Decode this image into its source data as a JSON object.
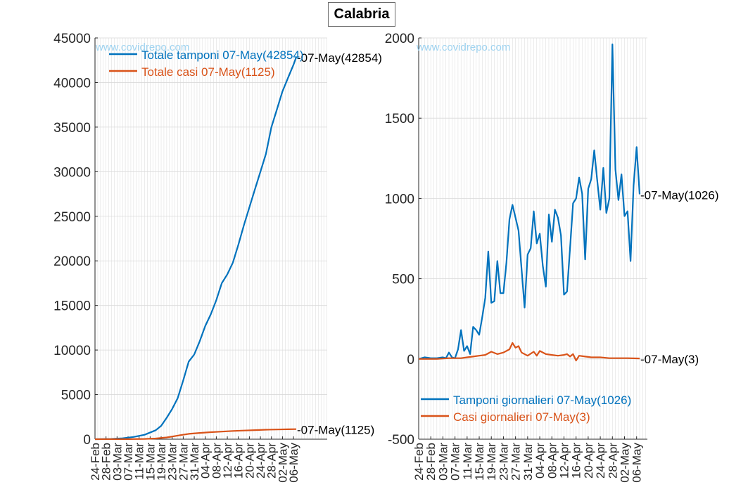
{
  "page": {
    "title": "Calabria",
    "watermark": "www.covidrepo.com"
  },
  "chart_data": [
    {
      "type": "line",
      "title": "",
      "xlabel": "",
      "ylabel": "",
      "ylim": [
        0,
        45000
      ],
      "yticks": [
        0,
        5000,
        10000,
        15000,
        20000,
        25000,
        30000,
        35000,
        40000,
        45000
      ],
      "xticklabels": [
        "24-Feb",
        "28-Feb",
        "03-Mar",
        "07-Mar",
        "11-Mar",
        "15-Mar",
        "19-Mar",
        "23-Mar",
        "27-Mar",
        "31-Mar",
        "04-Apr",
        "08-Apr",
        "12-Apr",
        "16-Apr",
        "20-Apr",
        "24-Apr",
        "28-Apr",
        "02-May",
        "06-May"
      ],
      "x_start": "24-Feb",
      "x_end": "07-May",
      "grid": true,
      "legend_position": "top-left",
      "series": [
        {
          "name": "Totale tamponi 07-May(42854)",
          "color": "#0072BD",
          "end_label": "-07-May(42854)",
          "values": [
            {
              "d": "24-Feb",
              "v": 0
            },
            {
              "d": "01-Mar",
              "v": 30
            },
            {
              "d": "05-Mar",
              "v": 100
            },
            {
              "d": "09-Mar",
              "v": 250
            },
            {
              "d": "13-Mar",
              "v": 500
            },
            {
              "d": "17-Mar",
              "v": 1000
            },
            {
              "d": "19-Mar",
              "v": 1500
            },
            {
              "d": "21-Mar",
              "v": 2400
            },
            {
              "d": "23-Mar",
              "v": 3400
            },
            {
              "d": "25-Mar",
              "v": 4600
            },
            {
              "d": "27-Mar",
              "v": 6600
            },
            {
              "d": "29-Mar",
              "v": 8700
            },
            {
              "d": "31-Mar",
              "v": 9500
            },
            {
              "d": "02-Apr",
              "v": 11000
            },
            {
              "d": "04-Apr",
              "v": 12700
            },
            {
              "d": "06-Apr",
              "v": 14000
            },
            {
              "d": "08-Apr",
              "v": 15600
            },
            {
              "d": "10-Apr",
              "v": 17500
            },
            {
              "d": "12-Apr",
              "v": 18500
            },
            {
              "d": "14-Apr",
              "v": 19800
            },
            {
              "d": "16-Apr",
              "v": 21800
            },
            {
              "d": "18-Apr",
              "v": 24000
            },
            {
              "d": "20-Apr",
              "v": 26000
            },
            {
              "d": "22-Apr",
              "v": 28000
            },
            {
              "d": "24-Apr",
              "v": 30000
            },
            {
              "d": "26-Apr",
              "v": 32000
            },
            {
              "d": "28-Apr",
              "v": 35000
            },
            {
              "d": "30-Apr",
              "v": 37000
            },
            {
              "d": "02-May",
              "v": 39000
            },
            {
              "d": "04-May",
              "v": 40500
            },
            {
              "d": "06-May",
              "v": 42000
            },
            {
              "d": "07-May",
              "v": 42854
            }
          ]
        },
        {
          "name": "Totale casi 07-May(1125)",
          "color": "#D95319",
          "end_label": "-07-May(1125)",
          "values": [
            {
              "d": "24-Feb",
              "v": 0
            },
            {
              "d": "07-Mar",
              "v": 5
            },
            {
              "d": "13-Mar",
              "v": 30
            },
            {
              "d": "17-Mar",
              "v": 80
            },
            {
              "d": "21-Mar",
              "v": 200
            },
            {
              "d": "25-Mar",
              "v": 400
            },
            {
              "d": "29-Mar",
              "v": 600
            },
            {
              "d": "02-Apr",
              "v": 700
            },
            {
              "d": "06-Apr",
              "v": 790
            },
            {
              "d": "10-Apr",
              "v": 850
            },
            {
              "d": "14-Apr",
              "v": 920
            },
            {
              "d": "18-Apr",
              "v": 970
            },
            {
              "d": "22-Apr",
              "v": 1020
            },
            {
              "d": "26-Apr",
              "v": 1060
            },
            {
              "d": "30-Apr",
              "v": 1085
            },
            {
              "d": "04-May",
              "v": 1110
            },
            {
              "d": "07-May",
              "v": 1125
            }
          ]
        }
      ]
    },
    {
      "type": "line",
      "title": "",
      "xlabel": "",
      "ylabel": "",
      "ylim": [
        -500,
        2000
      ],
      "yticks": [
        -500,
        0,
        500,
        1000,
        1500,
        2000
      ],
      "xticklabels": [
        "24-Feb",
        "28-Feb",
        "03-Mar",
        "07-Mar",
        "11-Mar",
        "15-Mar",
        "19-Mar",
        "23-Mar",
        "27-Mar",
        "31-Mar",
        "04-Apr",
        "08-Apr",
        "12-Apr",
        "16-Apr",
        "20-Apr",
        "24-Apr",
        "28-Apr",
        "02-May",
        "06-May"
      ],
      "x_start": "24-Feb",
      "x_end": "07-May",
      "grid": true,
      "legend_position": "bottom-left",
      "series": [
        {
          "name": "Tamponi giornalieri 07-May(1026)",
          "color": "#0072BD",
          "end_label": "-07-May(1026)",
          "values": [
            {
              "d": "24-Feb",
              "v": 0
            },
            {
              "d": "26-Feb",
              "v": 10
            },
            {
              "d": "28-Feb",
              "v": 5
            },
            {
              "d": "01-Mar",
              "v": 5
            },
            {
              "d": "03-Mar",
              "v": 10
            },
            {
              "d": "04-Mar",
              "v": 5
            },
            {
              "d": "05-Mar",
              "v": 40
            },
            {
              "d": "06-Mar",
              "v": 10
            },
            {
              "d": "07-Mar",
              "v": 5
            },
            {
              "d": "08-Mar",
              "v": 60
            },
            {
              "d": "09-Mar",
              "v": 180
            },
            {
              "d": "10-Mar",
              "v": 50
            },
            {
              "d": "11-Mar",
              "v": 80
            },
            {
              "d": "12-Mar",
              "v": 30
            },
            {
              "d": "13-Mar",
              "v": 200
            },
            {
              "d": "14-Mar",
              "v": 180
            },
            {
              "d": "15-Mar",
              "v": 150
            },
            {
              "d": "16-Mar",
              "v": 260
            },
            {
              "d": "17-Mar",
              "v": 380
            },
            {
              "d": "18-Mar",
              "v": 670
            },
            {
              "d": "19-Mar",
              "v": 350
            },
            {
              "d": "20-Mar",
              "v": 360
            },
            {
              "d": "21-Mar",
              "v": 610
            },
            {
              "d": "22-Mar",
              "v": 410
            },
            {
              "d": "23-Mar",
              "v": 410
            },
            {
              "d": "24-Mar",
              "v": 600
            },
            {
              "d": "25-Mar",
              "v": 870
            },
            {
              "d": "26-Mar",
              "v": 960
            },
            {
              "d": "27-Mar",
              "v": 880
            },
            {
              "d": "28-Mar",
              "v": 800
            },
            {
              "d": "29-Mar",
              "v": 560
            },
            {
              "d": "30-Mar",
              "v": 320
            },
            {
              "d": "31-Mar",
              "v": 650
            },
            {
              "d": "01-Apr",
              "v": 690
            },
            {
              "d": "02-Apr",
              "v": 920
            },
            {
              "d": "03-Apr",
              "v": 720
            },
            {
              "d": "04-Apr",
              "v": 780
            },
            {
              "d": "05-Apr",
              "v": 580
            },
            {
              "d": "06-Apr",
              "v": 450
            },
            {
              "d": "07-Apr",
              "v": 900
            },
            {
              "d": "08-Apr",
              "v": 730
            },
            {
              "d": "09-Apr",
              "v": 930
            },
            {
              "d": "10-Apr",
              "v": 880
            },
            {
              "d": "11-Apr",
              "v": 770
            },
            {
              "d": "12-Apr",
              "v": 400
            },
            {
              "d": "13-Apr",
              "v": 420
            },
            {
              "d": "14-Apr",
              "v": 690
            },
            {
              "d": "15-Apr",
              "v": 970
            },
            {
              "d": "16-Apr",
              "v": 1000
            },
            {
              "d": "17-Apr",
              "v": 1130
            },
            {
              "d": "18-Apr",
              "v": 1030
            },
            {
              "d": "19-Apr",
              "v": 620
            },
            {
              "d": "20-Apr",
              "v": 1060
            },
            {
              "d": "21-Apr",
              "v": 1120
            },
            {
              "d": "22-Apr",
              "v": 1300
            },
            {
              "d": "23-Apr",
              "v": 1110
            },
            {
              "d": "24-Apr",
              "v": 930
            },
            {
              "d": "25-Apr",
              "v": 1190
            },
            {
              "d": "26-Apr",
              "v": 910
            },
            {
              "d": "27-Apr",
              "v": 1000
            },
            {
              "d": "28-Apr",
              "v": 1960
            },
            {
              "d": "29-Apr",
              "v": 1180
            },
            {
              "d": "30-Apr",
              "v": 990
            },
            {
              "d": "01-May",
              "v": 1150
            },
            {
              "d": "02-May",
              "v": 890
            },
            {
              "d": "03-May",
              "v": 920
            },
            {
              "d": "04-May",
              "v": 610
            },
            {
              "d": "05-May",
              "v": 1080
            },
            {
              "d": "06-May",
              "v": 1320
            },
            {
              "d": "07-May",
              "v": 1026
            }
          ]
        },
        {
          "name": "Casi giornalieri 07-May(3)",
          "color": "#D95319",
          "end_label": "-07-May(3)",
          "values": [
            {
              "d": "24-Feb",
              "v": 0
            },
            {
              "d": "01-Mar",
              "v": 0
            },
            {
              "d": "05-Mar",
              "v": 5
            },
            {
              "d": "09-Mar",
              "v": 5
            },
            {
              "d": "11-Mar",
              "v": 10
            },
            {
              "d": "13-Mar",
              "v": 15
            },
            {
              "d": "15-Mar",
              "v": 20
            },
            {
              "d": "17-Mar",
              "v": 25
            },
            {
              "d": "19-Mar",
              "v": 45
            },
            {
              "d": "21-Mar",
              "v": 30
            },
            {
              "d": "23-Mar",
              "v": 40
            },
            {
              "d": "25-Mar",
              "v": 60
            },
            {
              "d": "26-Mar",
              "v": 100
            },
            {
              "d": "27-Mar",
              "v": 70
            },
            {
              "d": "28-Mar",
              "v": 80
            },
            {
              "d": "29-Mar",
              "v": 40
            },
            {
              "d": "31-Mar",
              "v": 20
            },
            {
              "d": "02-Apr",
              "v": 45
            },
            {
              "d": "03-Apr",
              "v": 20
            },
            {
              "d": "04-Apr",
              "v": 50
            },
            {
              "d": "06-Apr",
              "v": 30
            },
            {
              "d": "08-Apr",
              "v": 25
            },
            {
              "d": "10-Apr",
              "v": 20
            },
            {
              "d": "12-Apr",
              "v": 25
            },
            {
              "d": "13-Apr",
              "v": 30
            },
            {
              "d": "14-Apr",
              "v": 15
            },
            {
              "d": "15-Apr",
              "v": 30
            },
            {
              "d": "16-Apr",
              "v": -10
            },
            {
              "d": "17-Apr",
              "v": 20
            },
            {
              "d": "19-Apr",
              "v": 15
            },
            {
              "d": "21-Apr",
              "v": 10
            },
            {
              "d": "24-Apr",
              "v": 10
            },
            {
              "d": "27-Apr",
              "v": 5
            },
            {
              "d": "30-Apr",
              "v": 5
            },
            {
              "d": "03-May",
              "v": 5
            },
            {
              "d": "07-May",
              "v": 3
            }
          ]
        }
      ]
    }
  ]
}
